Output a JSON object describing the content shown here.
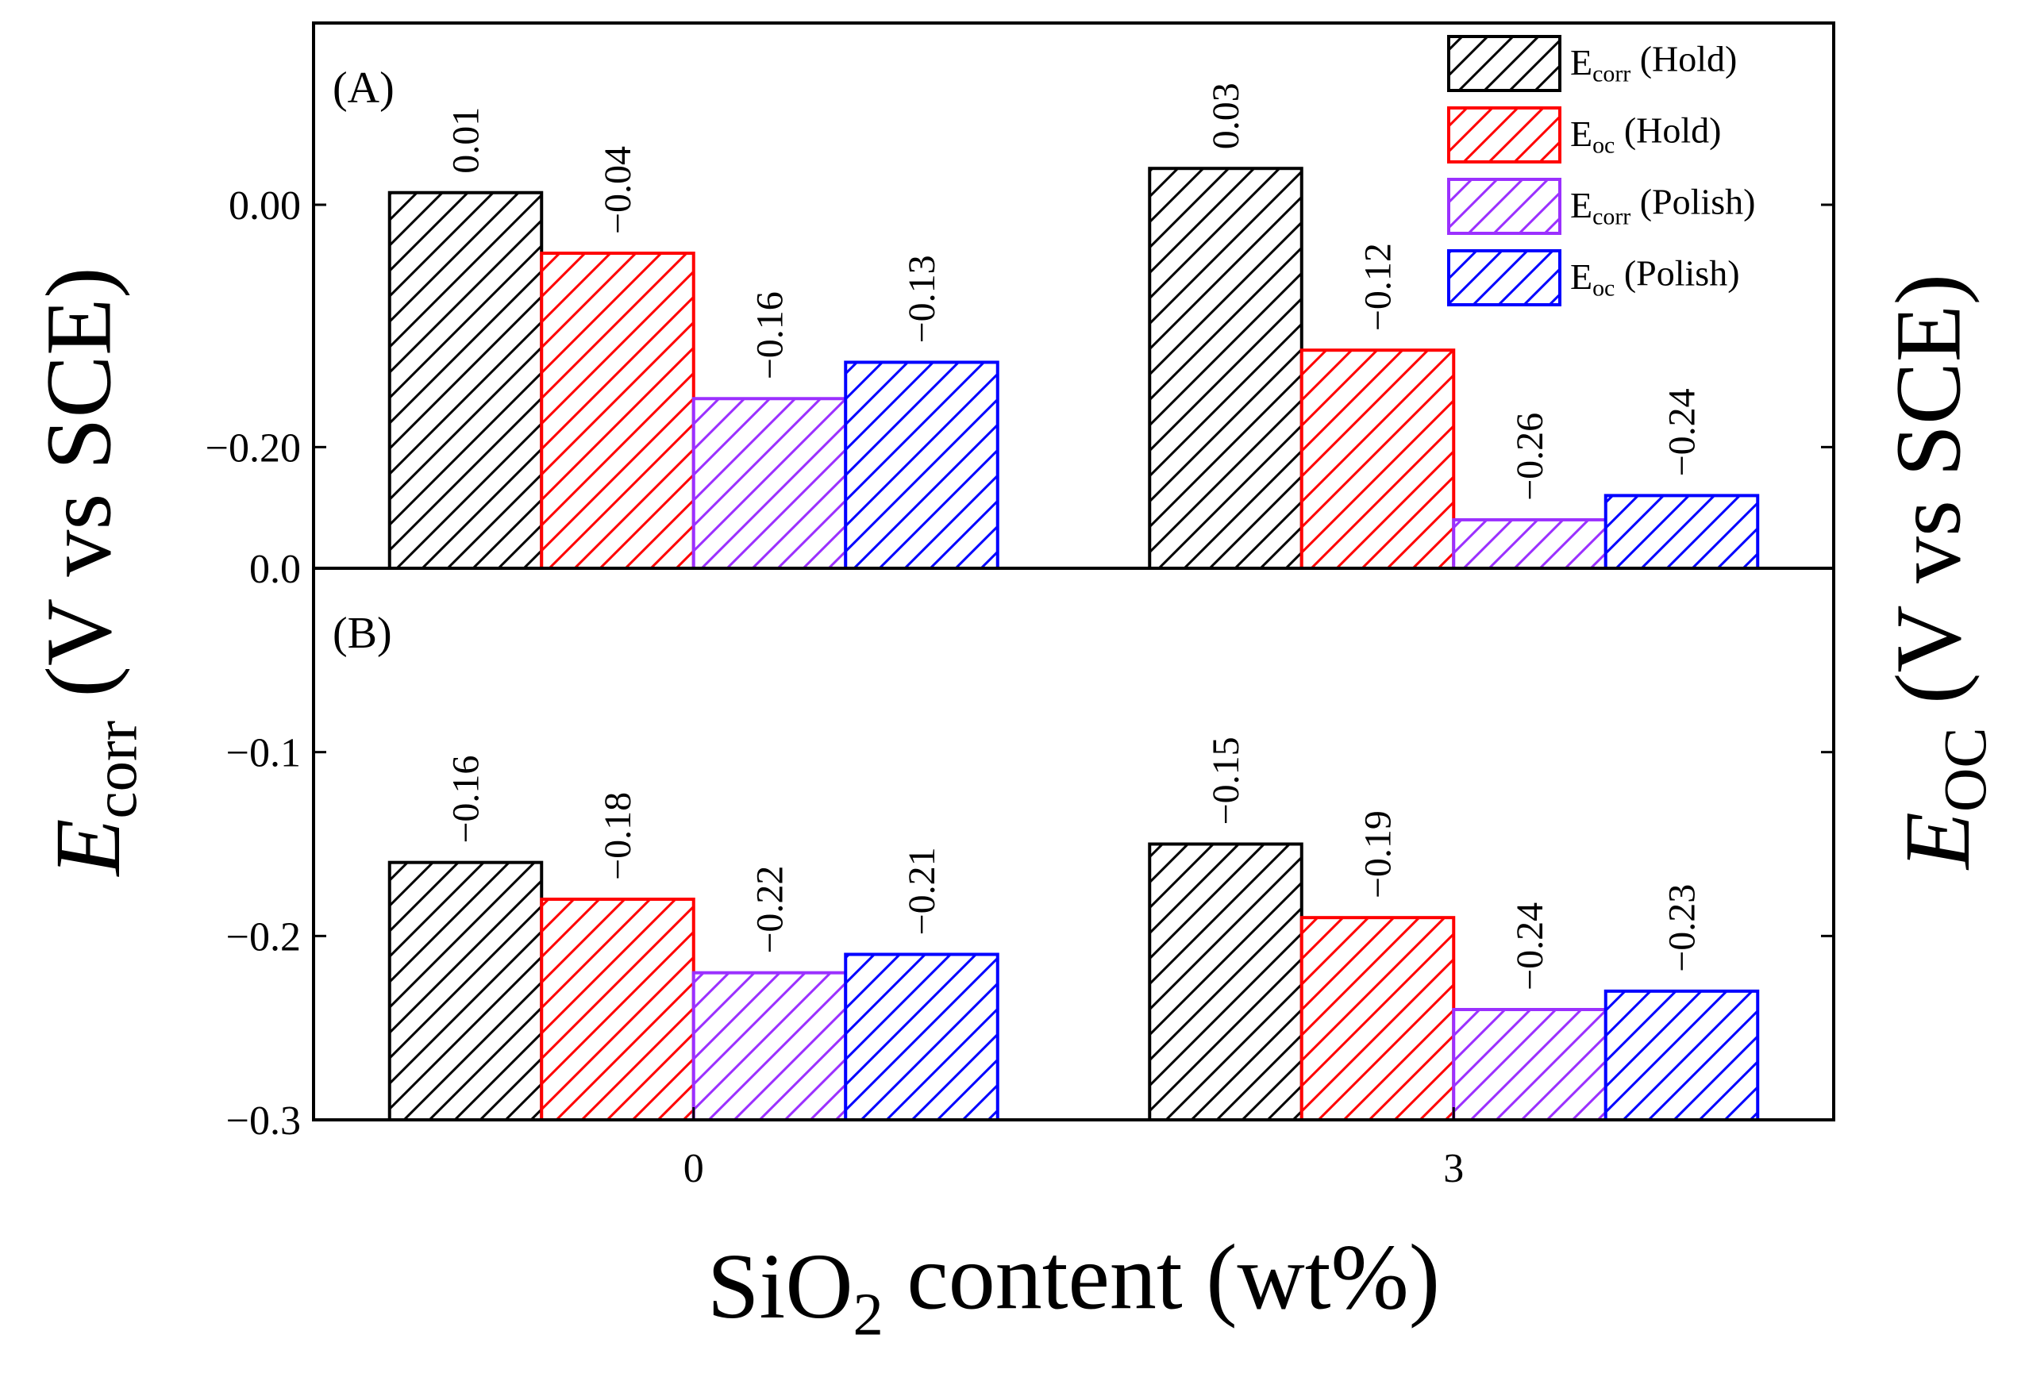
{
  "chart_data": [
    {
      "type": "bar",
      "panel_label": "(A)",
      "ylabel": "Ecorr (V vs SCE)",
      "y2label": "EOC (V vs SCE)",
      "ylim": [
        -0.3,
        0.15
      ],
      "yticks": [
        {
          "value": 0,
          "label": "0.00"
        },
        {
          "value": -0.2,
          "label": "−0.20"
        }
      ],
      "legend": "upper right",
      "series": [
        {
          "name": "Ecorr (Hold)",
          "color": "#000000",
          "values": [
            0.01,
            0.03
          ],
          "value_labels": [
            "0.01",
            "0.03"
          ]
        },
        {
          "name": "Eoc (Hold)",
          "color": "#ff0000",
          "values": [
            -0.04,
            -0.12
          ],
          "value_labels": [
            "−0.04",
            "−0.12"
          ]
        },
        {
          "name": "Ecorr (Polish)",
          "color": "#9b30ff",
          "values": [
            -0.16,
            -0.26
          ],
          "value_labels": [
            "−0.16",
            "−0.26"
          ]
        },
        {
          "name": "Eoc (Polish)",
          "color": "#0000ff",
          "values": [
            -0.13,
            -0.24
          ],
          "value_labels": [
            "−0.13",
            "−0.24"
          ]
        }
      ]
    },
    {
      "type": "bar",
      "panel_label": "(B)",
      "xlabel": "SiO2 content (wt%)",
      "categories": [
        "0",
        "3"
      ],
      "ylim": [
        -0.3,
        0.0
      ],
      "yticks": [
        {
          "value": 0,
          "label": "0.0"
        },
        {
          "value": -0.1,
          "label": "−0.1"
        },
        {
          "value": -0.2,
          "label": "−0.2"
        },
        {
          "value": -0.3,
          "label": "−0.3"
        }
      ],
      "series": [
        {
          "color": "#000000",
          "values": [
            -0.16,
            -0.15
          ],
          "value_labels": [
            "−0.16",
            "−0.15"
          ]
        },
        {
          "color": "#ff0000",
          "values": [
            -0.18,
            -0.19
          ],
          "value_labels": [
            "−0.18",
            "−0.19"
          ]
        },
        {
          "color": "#9b30ff",
          "values": [
            -0.22,
            -0.24
          ],
          "value_labels": [
            "−0.22",
            "−0.24"
          ]
        },
        {
          "color": "#0000ff",
          "values": [
            -0.21,
            -0.23
          ],
          "value_labels": [
            "−0.21",
            "−0.23"
          ]
        }
      ]
    }
  ]
}
